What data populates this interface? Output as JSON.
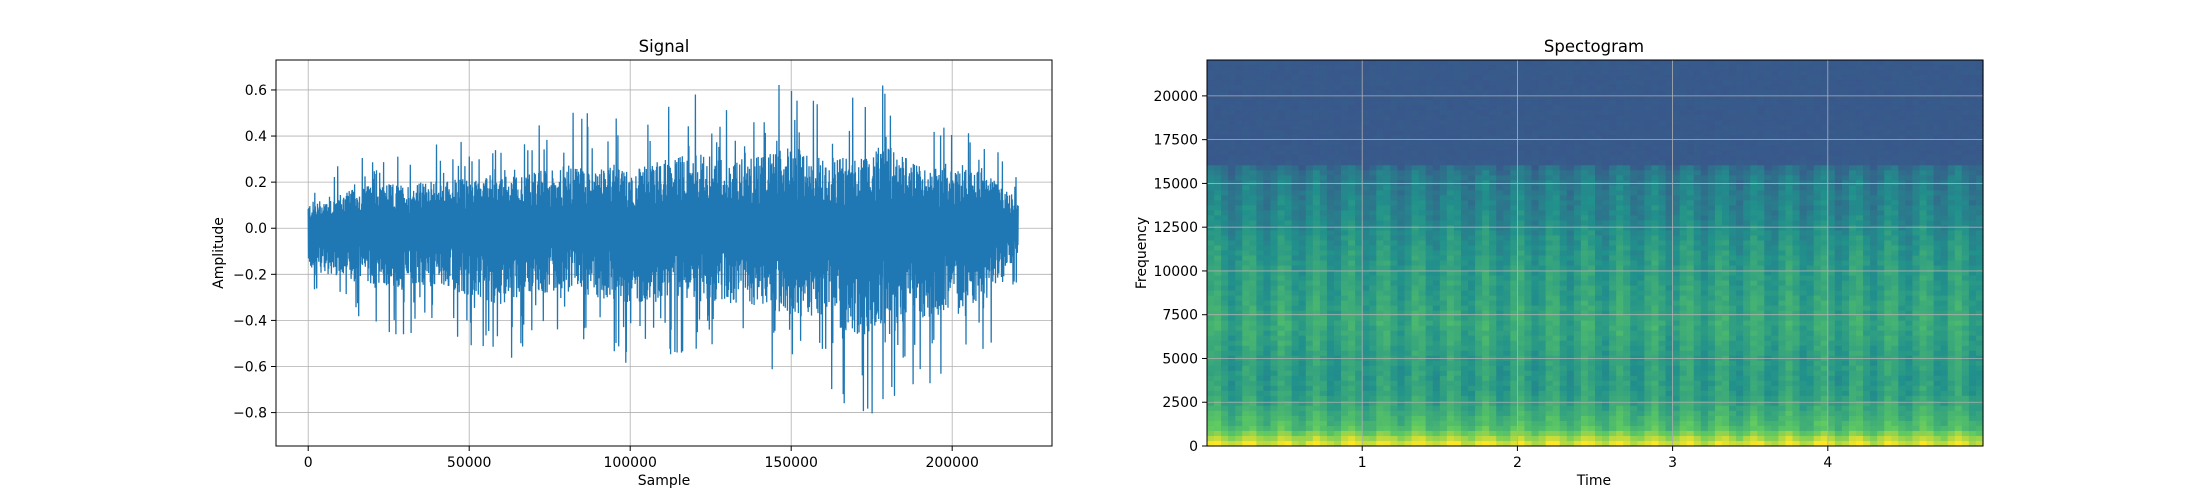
{
  "chart_data": [
    {
      "type": "line",
      "title": "Signal",
      "xlabel": "Sample",
      "ylabel": "Amplitude",
      "xlim": [
        -10000,
        231000
      ],
      "ylim": [
        -0.945,
        0.73
      ],
      "grid": true,
      "line_color": "#1f77b4",
      "xticks": [
        0,
        50000,
        100000,
        150000,
        200000
      ],
      "xtick_labels": [
        "0",
        "50000",
        "100000",
        "150000",
        "200000"
      ],
      "yticks": [
        0.6,
        0.4,
        0.2,
        0.0,
        -0.2,
        -0.4,
        -0.6,
        -0.8
      ],
      "ytick_labels": [
        "0.6",
        "0.4",
        "0.2",
        "0.0",
        "−0.2",
        "−0.4",
        "−0.6",
        "−0.8"
      ],
      "envelope": {
        "x": [
          0,
          10000,
          20000,
          30000,
          40000,
          50000,
          60000,
          70000,
          80000,
          90000,
          100000,
          110000,
          120000,
          130000,
          140000,
          150000,
          160000,
          170000,
          180000,
          190000,
          200000,
          210000,
          220000
        ],
        "upper": [
          0.2,
          0.28,
          0.35,
          0.35,
          0.38,
          0.4,
          0.4,
          0.45,
          0.5,
          0.52,
          0.45,
          0.55,
          0.6,
          0.55,
          0.58,
          0.65,
          0.55,
          0.6,
          0.65,
          0.5,
          0.48,
          0.45,
          0.25
        ],
        "lower": [
          -0.32,
          -0.4,
          -0.45,
          -0.5,
          -0.45,
          -0.55,
          -0.6,
          -0.5,
          -0.5,
          -0.55,
          -0.6,
          -0.55,
          -0.55,
          -0.6,
          -0.6,
          -0.7,
          -0.72,
          -0.85,
          -0.82,
          -0.72,
          -0.65,
          -0.58,
          -0.25
        ]
      },
      "n_samples": 220500
    },
    {
      "type": "heatmap",
      "title": "Spectogram",
      "xlabel": "Time",
      "ylabel": "Frequency",
      "xlim": [
        0,
        5.0
      ],
      "ylim": [
        0,
        22050
      ],
      "grid": true,
      "colormap": "viridis",
      "xticks": [
        1,
        2,
        3,
        4
      ],
      "xtick_labels": [
        "1",
        "2",
        "3",
        "4"
      ],
      "yticks": [
        0,
        2500,
        5000,
        7500,
        10000,
        12500,
        15000,
        17500,
        20000
      ],
      "ytick_labels": [
        "0",
        "2500",
        "5000",
        "7500",
        "10000",
        "12500",
        "15000",
        "17500",
        "20000"
      ],
      "colors": [
        "#440154",
        "#3b528b",
        "#21918c",
        "#5ec962",
        "#fde725"
      ],
      "freq_profile": {
        "freqs": [
          0,
          500,
          1000,
          2000,
          3000,
          4000,
          5000,
          6000,
          7000,
          8000,
          9000,
          10000,
          11000,
          12000,
          13000,
          14000,
          15000,
          15800,
          16200,
          17000,
          22050
        ],
        "level": [
          0.98,
          0.85,
          0.7,
          0.62,
          0.56,
          0.55,
          0.56,
          0.58,
          0.6,
          0.58,
          0.56,
          0.55,
          0.53,
          0.5,
          0.46,
          0.44,
          0.42,
          0.38,
          0.28,
          0.28,
          0.28
        ]
      }
    }
  ]
}
